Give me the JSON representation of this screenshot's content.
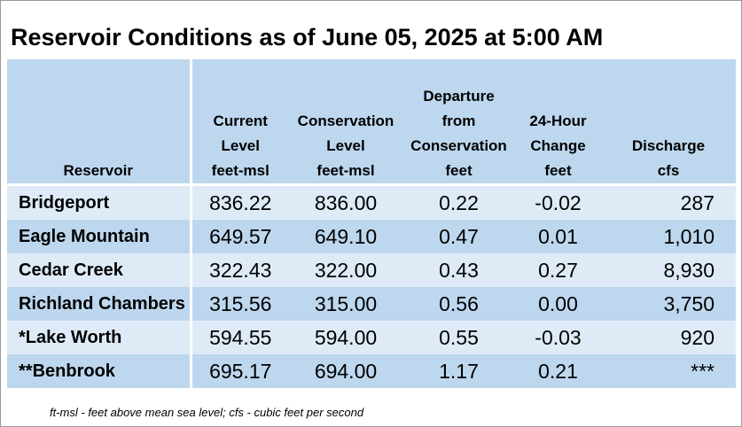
{
  "title": "Reservoir Conditions as of June 05, 2025 at 5:00 AM",
  "headers": {
    "reservoir": [
      "Reservoir"
    ],
    "current_level": [
      "Current",
      "Level",
      "feet-msl"
    ],
    "conservation_level": [
      "Conservation",
      "Level",
      "feet-msl"
    ],
    "departure": [
      "Departure",
      "from",
      "Conservation",
      "feet"
    ],
    "change_24h": [
      "24-Hour",
      "Change",
      "feet"
    ],
    "discharge": [
      "Discharge",
      "cfs"
    ]
  },
  "rows": [
    {
      "name": "Bridgeport",
      "current": "836.22",
      "conservation": "836.00",
      "departure": "0.22",
      "change": "-0.02",
      "discharge": "287"
    },
    {
      "name": "Eagle Mountain",
      "current": "649.57",
      "conservation": "649.10",
      "departure": "0.47",
      "change": "0.01",
      "discharge": "1,010"
    },
    {
      "name": "Cedar Creek",
      "current": "322.43",
      "conservation": "322.00",
      "departure": "0.43",
      "change": "0.27",
      "discharge": "8,930"
    },
    {
      "name": "Richland Chambers",
      "current": "315.56",
      "conservation": "315.00",
      "departure": "0.56",
      "change": "0.00",
      "discharge": "3,750"
    },
    {
      "name": "*Lake Worth",
      "current": "594.55",
      "conservation": "594.00",
      "departure": "0.55",
      "change": "-0.03",
      "discharge": "920"
    },
    {
      "name": "**Benbrook",
      "current": "695.17",
      "conservation": "694.00",
      "departure": "1.17",
      "change": "0.21",
      "discharge": "***"
    }
  ],
  "footnote": "ft-msl - feet above mean sea level; cfs - cubic feet per second",
  "colors": {
    "header_bg": "#bdd7ee",
    "row_light": "#deebf7",
    "row_dark": "#bdd7ee",
    "border": "#9a9a9a"
  }
}
